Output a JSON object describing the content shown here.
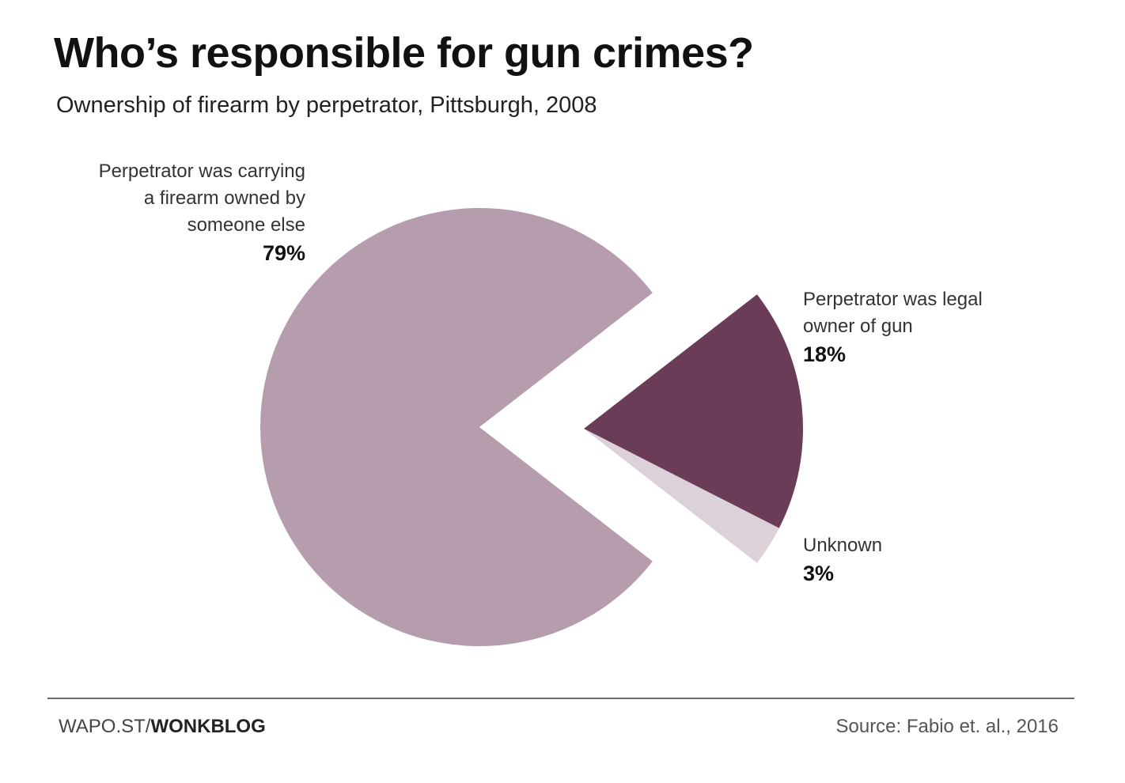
{
  "chart_data": {
    "type": "pie",
    "title": "Who’s responsible for gun crimes?",
    "subtitle": "Ownership of firearm by perpetrator, Pittsburgh, 2008",
    "slices": [
      {
        "id": "someone-else",
        "label_lines": [
          "Perpetrator was carrying",
          "a firearm owned by",
          "someone else"
        ],
        "value": 79,
        "value_label": "79%",
        "color": "#b59dad"
      },
      {
        "id": "legal-owner",
        "label_lines": [
          "Perpetrator was legal",
          "owner of gun"
        ],
        "value": 18,
        "value_label": "18%",
        "color": "#6b3c58"
      },
      {
        "id": "unknown",
        "label_lines": [
          "Unknown"
        ],
        "value": 3,
        "value_label": "3%",
        "color": "#ddd1d9"
      }
    ]
  },
  "footer": {
    "prefix": "WAPO.ST/",
    "brand": "WONKBLOG",
    "source": "Source: Fabio et. al., 2016"
  }
}
